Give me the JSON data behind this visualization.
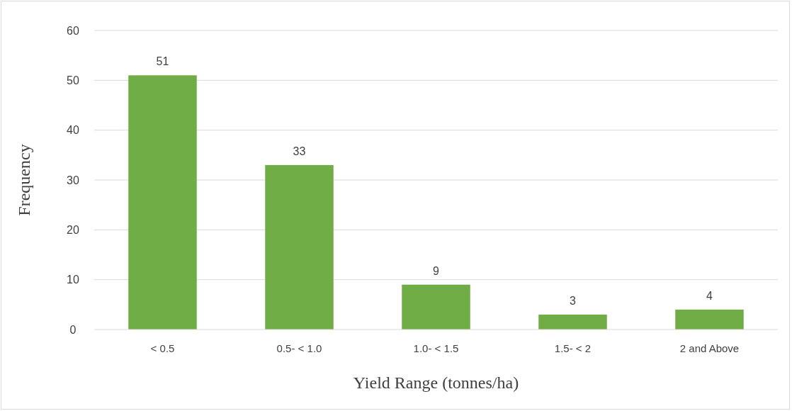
{
  "chart_data": {
    "type": "bar",
    "xlabel": "Yield Range (tonnes/ha)",
    "ylabel": "Frequency",
    "categories": [
      "< 0.5",
      "0.5- < 1.0",
      "1.0- < 1.5",
      "1.5- < 2",
      "2 and Above"
    ],
    "values": [
      51,
      33,
      9,
      3,
      4
    ],
    "color": "#70ad47",
    "ylim": [
      0,
      60
    ],
    "yticks": [
      0,
      10,
      20,
      30,
      40,
      50,
      60
    ],
    "grid": "y",
    "data_labels": true
  }
}
